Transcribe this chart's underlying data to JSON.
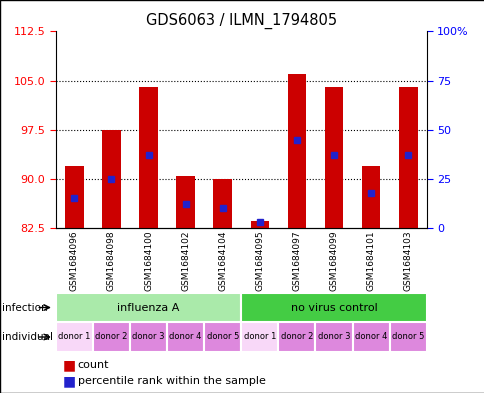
{
  "title": "GDS6063 / ILMN_1794805",
  "samples": [
    "GSM1684096",
    "GSM1684098",
    "GSM1684100",
    "GSM1684102",
    "GSM1684104",
    "GSM1684095",
    "GSM1684097",
    "GSM1684099",
    "GSM1684101",
    "GSM1684103"
  ],
  "counts": [
    92.0,
    97.5,
    104.0,
    90.5,
    90.0,
    83.5,
    106.0,
    104.0,
    92.0,
    104.0
  ],
  "percentiles": [
    15,
    25,
    37,
    12,
    10,
    3,
    45,
    37,
    18,
    37
  ],
  "ymin": 82.5,
  "ymax": 112.5,
  "yticks_left": [
    82.5,
    90.0,
    97.5,
    105.0,
    112.5
  ],
  "yticks_right": [
    0,
    25,
    50,
    75,
    100
  ],
  "grid_lines": [
    90.0,
    97.5,
    105.0
  ],
  "bar_color": "#cc0000",
  "percentile_color": "#2222cc",
  "infection_groups": [
    {
      "label": "influenza A",
      "start": 0,
      "end": 5,
      "color": "#aaeaaa"
    },
    {
      "label": "no virus control",
      "start": 5,
      "end": 10,
      "color": "#44cc44"
    }
  ],
  "donors": [
    "donor 1",
    "donor 2",
    "donor 3",
    "donor 4",
    "donor 5",
    "donor 1",
    "donor 2",
    "donor 3",
    "donor 4",
    "donor 5"
  ],
  "donor_colors_light": "#f8d8f8",
  "donor_colors_dark": "#dd88dd",
  "background_color": "#ffffff",
  "plot_bg": "#ffffff",
  "border_color": "#000000"
}
